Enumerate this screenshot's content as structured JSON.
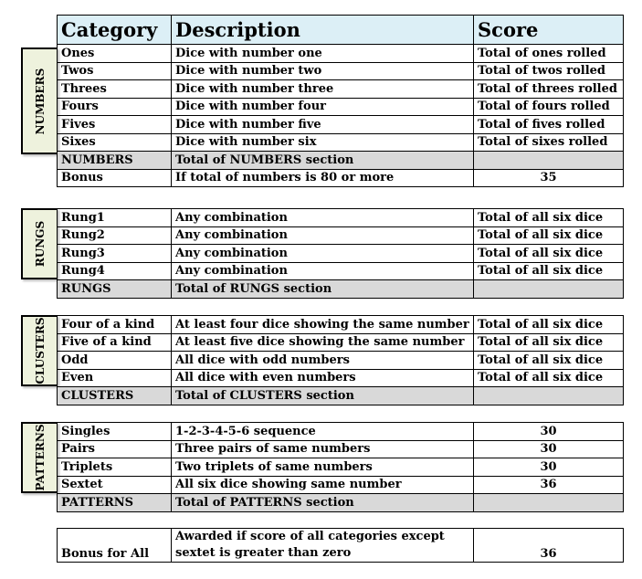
{
  "header": {
    "category": "Category",
    "description": "Description",
    "score": "Score"
  },
  "numbers": {
    "tab": "NUMBERS",
    "rows": [
      {
        "category": "Ones",
        "description": "Dice with number one",
        "score": "Total of ones rolled"
      },
      {
        "category": "Twos",
        "description": "Dice with number two",
        "score": "Total of twos rolled"
      },
      {
        "category": "Threes",
        "description": "Dice with number three",
        "score": "Total of threes rolled"
      },
      {
        "category": "Fours",
        "description": "Dice with number four",
        "score": "Total of fours rolled"
      },
      {
        "category": "Fives",
        "description": "Dice with number five",
        "score": "Total of fives rolled"
      },
      {
        "category": "Sixes",
        "description": "Dice with number six",
        "score": "Total of sixes rolled"
      }
    ],
    "total": {
      "category": "NUMBERS",
      "description": "Total of NUMBERS section"
    },
    "bonus": {
      "category": "Bonus",
      "description": "If total of numbers is 80 or more",
      "score": "35"
    }
  },
  "rungs": {
    "tab": "RUNGS",
    "rows": [
      {
        "category": "Rung1",
        "description": "Any combination",
        "score": "Total of all six dice"
      },
      {
        "category": "Rung2",
        "description": "Any combination",
        "score": "Total of all six dice"
      },
      {
        "category": "Rung3",
        "description": "Any combination",
        "score": "Total of all six dice"
      },
      {
        "category": "Rung4",
        "description": "Any combination",
        "score": "Total of all six dice"
      }
    ],
    "total": {
      "category": "RUNGS",
      "description": "Total of RUNGS section"
    }
  },
  "clusters": {
    "tab": "CLUSTERS",
    "rows": [
      {
        "category": "Four of a kind",
        "description": "At least four dice showing the same number",
        "score": "Total of all six dice"
      },
      {
        "category": "Five of a kind",
        "description": "At least five dice showing the same number",
        "score": "Total of all six dice"
      },
      {
        "category": "Odd",
        "description": "All dice with odd numbers",
        "score": "Total of all six dice"
      },
      {
        "category": "Even",
        "description": "All dice with even numbers",
        "score": "Total of all six dice"
      }
    ],
    "total": {
      "category": "CLUSTERS",
      "description": "Total of CLUSTERS section"
    }
  },
  "patterns": {
    "tab": "PATTERNS",
    "rows": [
      {
        "category": "Singles",
        "description": "1-2-3-4-5-6 sequence",
        "score": "30"
      },
      {
        "category": "Pairs",
        "description": "Three pairs of same numbers",
        "score": "30"
      },
      {
        "category": "Triplets",
        "description": "Two triplets of same numbers",
        "score": "30"
      },
      {
        "category": "Sextet",
        "description": "All six dice showing same number",
        "score": "36"
      }
    ],
    "total": {
      "category": "PATTERNS",
      "description": "Total of PATTERNS section"
    }
  },
  "bonus_all": {
    "category": "Bonus for All",
    "description": "Awarded if score of all categories except sextet is greater than zero",
    "score": "36"
  }
}
